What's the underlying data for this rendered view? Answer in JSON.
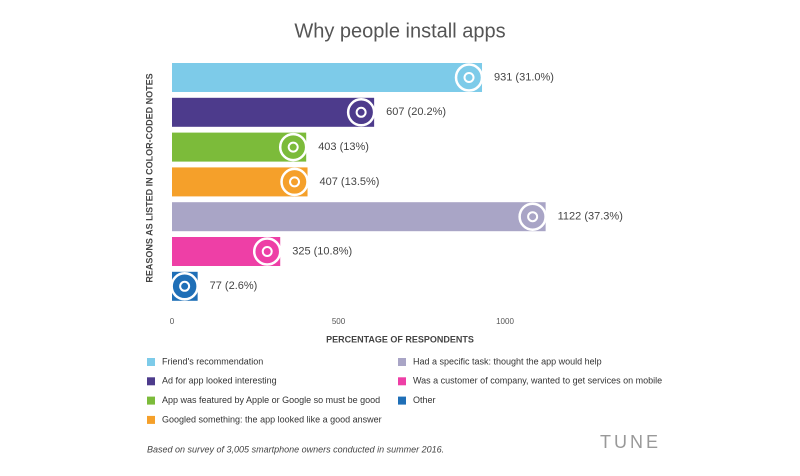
{
  "chart_data": {
    "type": "bar",
    "orientation": "horizontal",
    "title": "Why people install apps",
    "ylabel": "REASONS AS LISTED IN COLOR-CODED NOTES",
    "xlabel": "PERCENTAGE OF RESPONDENTS",
    "categories": [
      "Friend's recommendation",
      "Ad for app looked interesting",
      "App was featured by Apple or Google so must be good",
      "Googled something: the app looked like a good answer",
      "Had a specific task: thought the app would help",
      "Was a customer of company, wanted to get services on mobile",
      "Other"
    ],
    "values": [
      931,
      607,
      403,
      407,
      1122,
      325,
      77
    ],
    "value_labels": [
      "931 (31.0%)",
      "607 (20.2%)",
      "403 (13%)",
      "407 (13.5%)",
      "1122 (37.3%)",
      "325 (10.8%)",
      "77 (2.6%)"
    ],
    "colors": [
      "#7dcbe9",
      "#4d3b8c",
      "#7cbb3a",
      "#f5a02a",
      "#a9a5c6",
      "#ee3fa6",
      "#1f6fb7"
    ],
    "xlim": [
      0,
      1000
    ],
    "xticks": [
      0,
      500,
      1000
    ],
    "grid": false,
    "note": "Based on survey of 3,005 smartphone owners conducted in summer 2016.",
    "logo": "TUNE"
  }
}
